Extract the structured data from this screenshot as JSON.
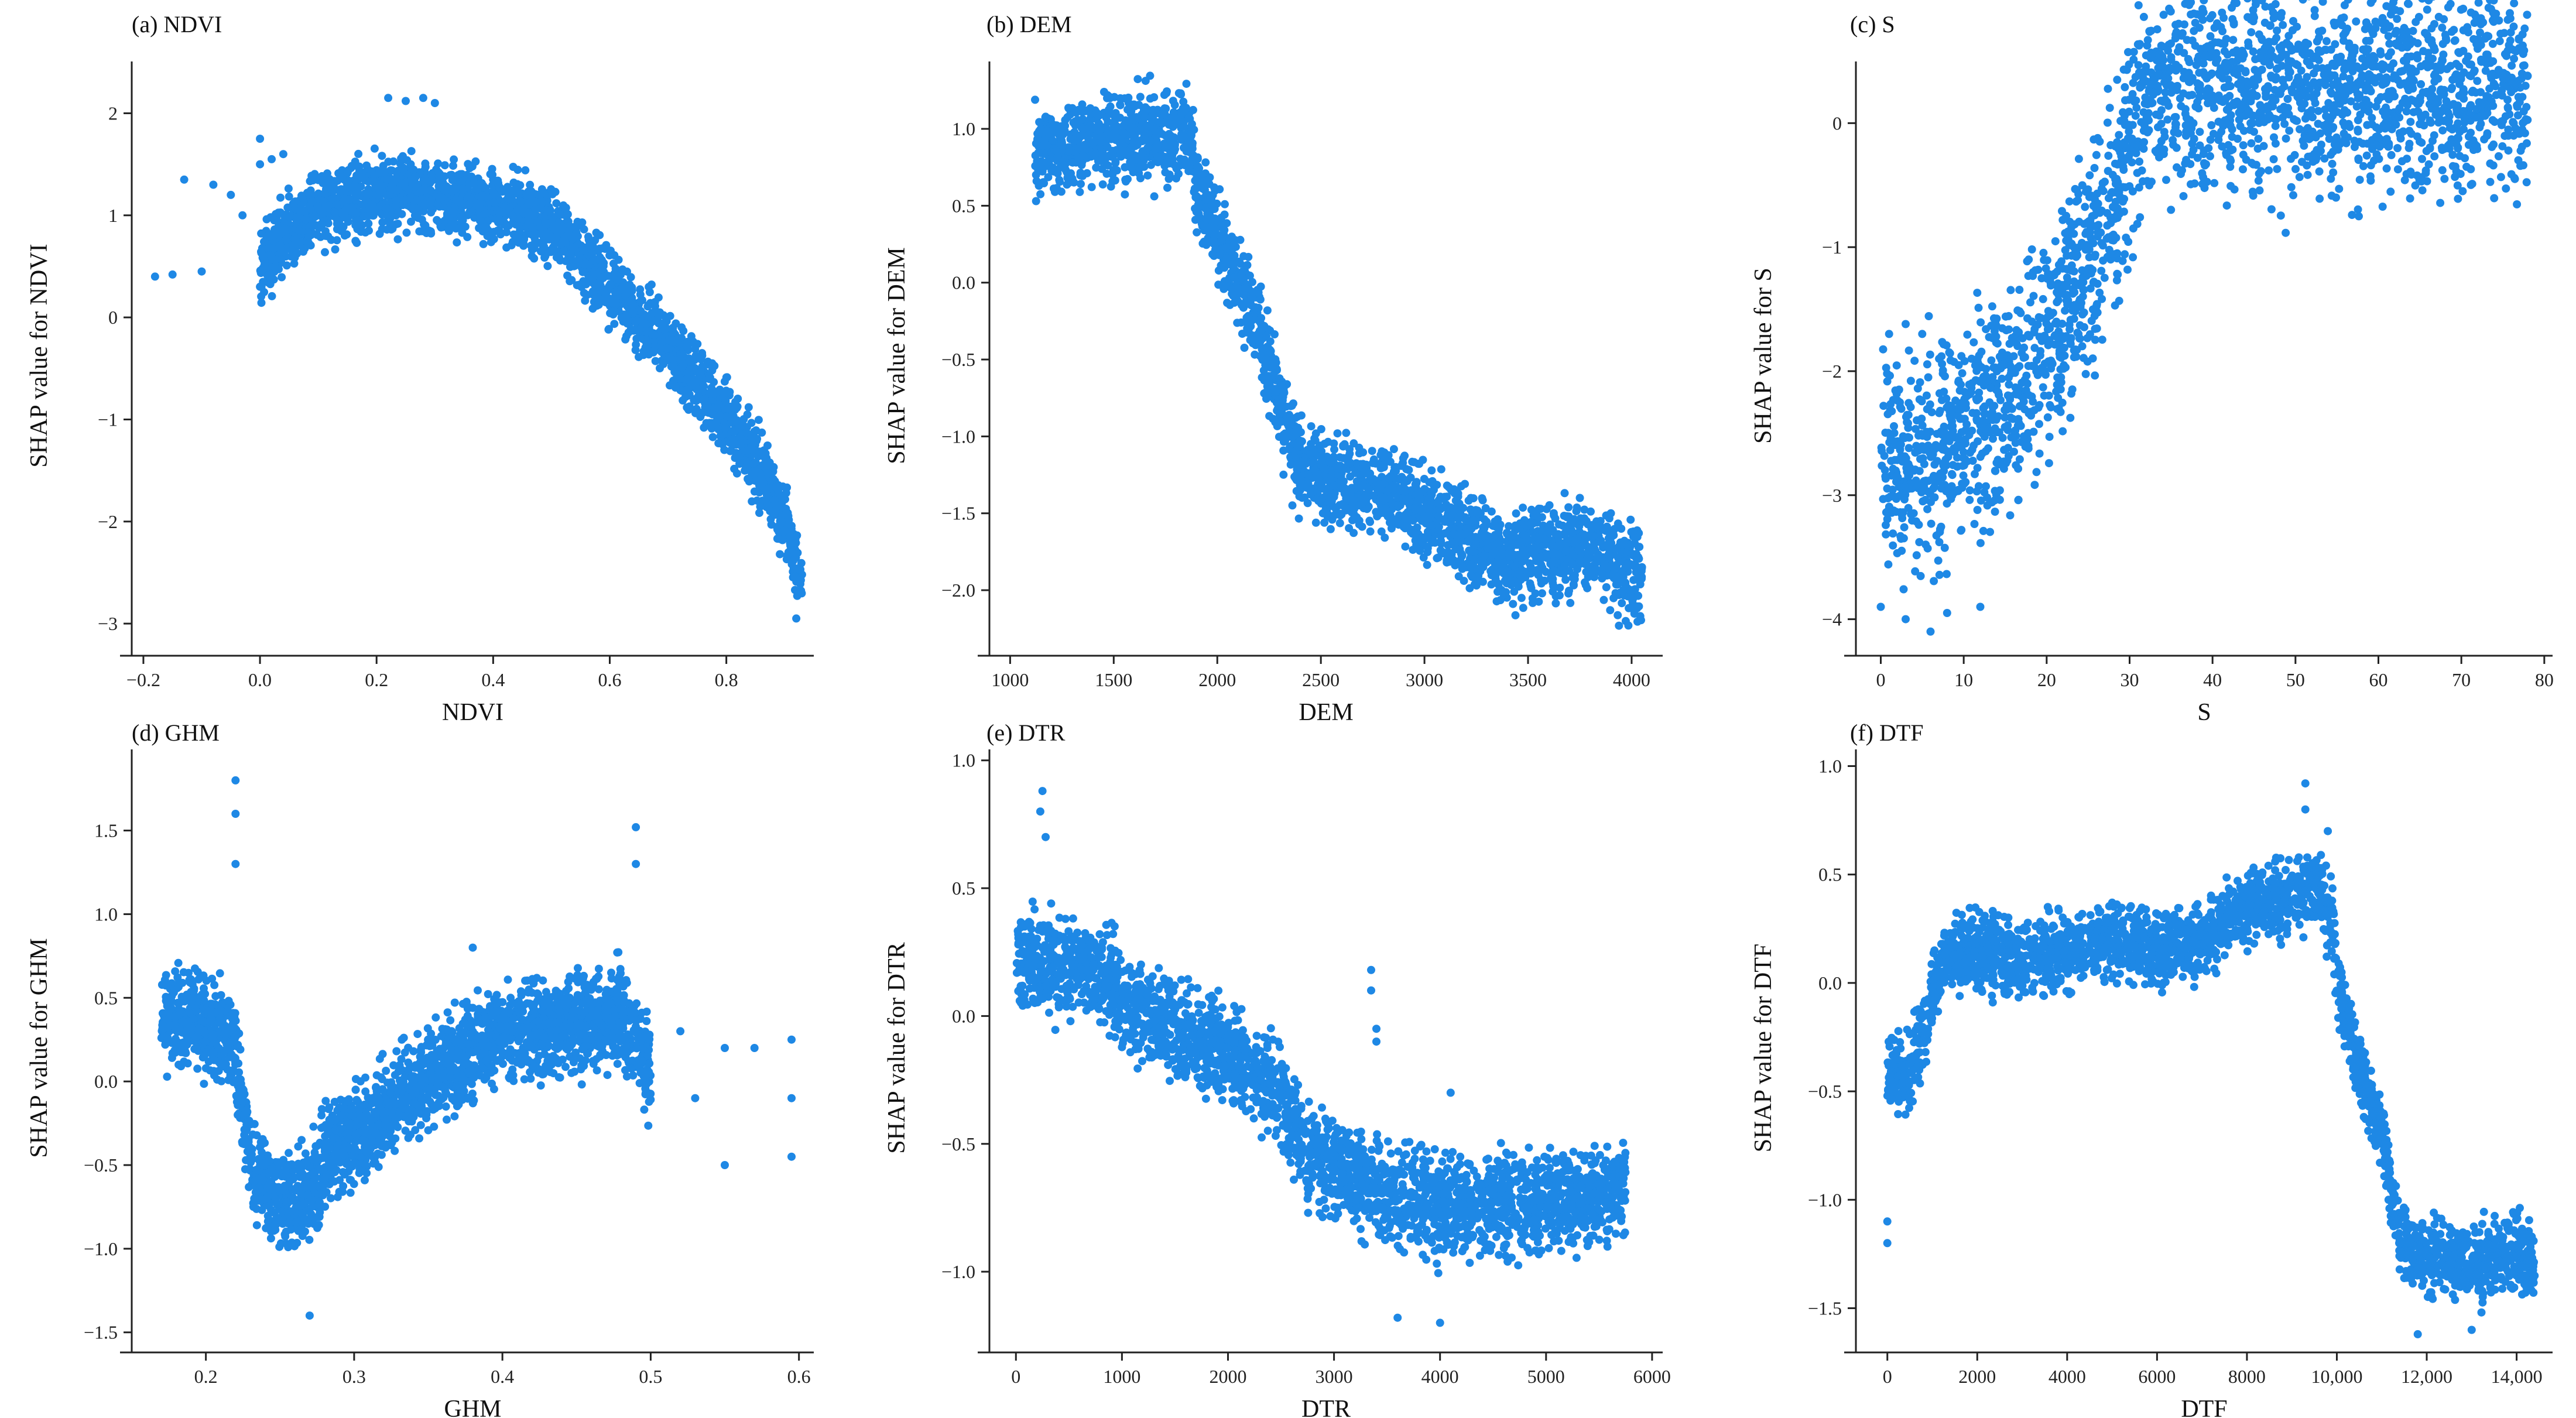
{
  "colors": {
    "points": "#1e88e5",
    "axis": "#222222"
  },
  "chart_data": [
    {
      "id": "ndvi",
      "type": "scatter",
      "title": "(a) NDVI",
      "xlabel": "NDVI",
      "ylabel": "SHAP value for NDVI",
      "xlim": [
        -0.22,
        0.95
      ],
      "ylim": [
        -3.2,
        2.45
      ],
      "xticks": [
        -0.2,
        0.0,
        0.2,
        0.4,
        0.6,
        0.8
      ],
      "xtick_labels": [
        "−0.2",
        "0.0",
        "0.2",
        "0.4",
        "0.6",
        "0.8"
      ],
      "yticks": [
        -3,
        -2,
        -1,
        0,
        1,
        2
      ],
      "ytick_labels": [
        "−3",
        "−2",
        "−1",
        "0",
        "1",
        "2"
      ],
      "trend": [
        [
          0.0,
          0.5
        ],
        [
          0.05,
          0.85
        ],
        [
          0.1,
          1.05
        ],
        [
          0.2,
          1.2
        ],
        [
          0.3,
          1.2
        ],
        [
          0.4,
          1.1
        ],
        [
          0.5,
          0.9
        ],
        [
          0.6,
          0.3
        ],
        [
          0.7,
          -0.3
        ],
        [
          0.8,
          -1.0
        ],
        [
          0.85,
          -1.4
        ],
        [
          0.9,
          -2.0
        ],
        [
          0.93,
          -2.6
        ]
      ],
      "spread": 0.35,
      "extra_points": [
        [
          -0.18,
          0.4
        ],
        [
          -0.15,
          0.42
        ],
        [
          -0.13,
          1.35
        ],
        [
          -0.1,
          0.45
        ],
        [
          -0.08,
          1.3
        ],
        [
          -0.05,
          1.2
        ],
        [
          -0.03,
          1.0
        ],
        [
          0.0,
          1.75
        ],
        [
          0.0,
          1.5
        ],
        [
          0.0,
          0.3
        ],
        [
          0.02,
          1.55
        ],
        [
          0.04,
          1.6
        ],
        [
          0.22,
          2.15
        ],
        [
          0.25,
          2.12
        ],
        [
          0.28,
          2.15
        ],
        [
          0.3,
          2.1
        ],
        [
          0.92,
          -2.95
        ]
      ]
    },
    {
      "id": "dem",
      "type": "scatter",
      "title": "(b) DEM",
      "xlabel": "DEM",
      "ylabel": "SHAP value for DEM",
      "xlim": [
        900,
        4150
      ],
      "ylim": [
        -2.35,
        1.4
      ],
      "xticks": [
        1000,
        1500,
        2000,
        2500,
        3000,
        3500,
        4000
      ],
      "xtick_labels": [
        "1000",
        "1500",
        "2000",
        "2500",
        "3000",
        "3500",
        "4000"
      ],
      "yticks": [
        -2.0,
        -1.5,
        -1.0,
        -0.5,
        0.0,
        0.5,
        1.0
      ],
      "ytick_labels": [
        "−2.0",
        "−1.5",
        "−1.0",
        "−0.5",
        "0.0",
        "0.5",
        "1.0"
      ],
      "trend": [
        [
          1120,
          0.85
        ],
        [
          1300,
          0.9
        ],
        [
          1500,
          0.95
        ],
        [
          1700,
          0.95
        ],
        [
          1880,
          0.95
        ],
        [
          1900,
          0.6
        ],
        [
          2000,
          0.3
        ],
        [
          2100,
          0.0
        ],
        [
          2200,
          -0.3
        ],
        [
          2300,
          -0.8
        ],
        [
          2400,
          -1.2
        ],
        [
          2600,
          -1.3
        ],
        [
          2800,
          -1.35
        ],
        [
          3000,
          -1.5
        ],
        [
          3200,
          -1.65
        ],
        [
          3400,
          -1.8
        ],
        [
          3600,
          -1.75
        ],
        [
          3800,
          -1.7
        ],
        [
          4050,
          -1.95
        ]
      ],
      "spread": 0.3,
      "extra_points": [
        [
          3750,
          -1.4
        ],
        [
          3850,
          -1.55
        ],
        [
          3900,
          -1.5
        ],
        [
          3950,
          -1.6
        ],
        [
          4000,
          -2.0
        ],
        [
          4050,
          -1.85
        ]
      ]
    },
    {
      "id": "s",
      "type": "scatter",
      "title": "(c) S",
      "xlabel": "S",
      "ylabel": "SHAP value for S",
      "xlim": [
        -3,
        81
      ],
      "ylim": [
        -4.2,
        0.45
      ],
      "xticks": [
        0,
        10,
        20,
        30,
        40,
        50,
        60,
        70,
        80
      ],
      "xtick_labels": [
        "0",
        "10",
        "20",
        "30",
        "40",
        "50",
        "60",
        "70",
        "80"
      ],
      "yticks": [
        -4,
        -3,
        -2,
        -1,
        0
      ],
      "ytick_labels": [
        "−4",
        "−3",
        "−2",
        "−1",
        "0"
      ],
      "trend": [
        [
          0,
          -2.7
        ],
        [
          5,
          -2.7
        ],
        [
          10,
          -2.5
        ],
        [
          15,
          -2.2
        ],
        [
          20,
          -1.8
        ],
        [
          25,
          -1.2
        ],
        [
          28,
          -0.7
        ],
        [
          30,
          -0.2
        ],
        [
          32,
          0.25
        ],
        [
          40,
          0.3
        ],
        [
          50,
          0.3
        ],
        [
          60,
          0.3
        ],
        [
          70,
          0.3
        ],
        [
          78,
          0.3
        ]
      ],
      "spread": 0.9,
      "extra_points": [
        [
          0,
          -3.9
        ],
        [
          3,
          -4.0
        ],
        [
          6,
          -4.1
        ],
        [
          8,
          -3.95
        ],
        [
          12,
          -3.9
        ],
        [
          1,
          -1.7
        ],
        [
          3,
          -1.62
        ],
        [
          5,
          -1.7
        ],
        [
          78,
          0.38
        ],
        [
          76,
          0.25
        ]
      ]
    },
    {
      "id": "ghm",
      "type": "scatter",
      "title": "(d) GHM",
      "xlabel": "GHM",
      "ylabel": "SHAP value for GHM",
      "xlim": [
        0.15,
        0.61
      ],
      "ylim": [
        -1.55,
        1.95
      ],
      "xticks": [
        0.2,
        0.3,
        0.4,
        0.5,
        0.6
      ],
      "xtick_labels": [
        "0.2",
        "0.3",
        "0.4",
        "0.5",
        "0.6"
      ],
      "yticks": [
        -1.5,
        -1.0,
        -0.5,
        0.0,
        0.5,
        1.0,
        1.5
      ],
      "ytick_labels": [
        "−1.5",
        "−1.0",
        "−0.5",
        "0.0",
        "0.5",
        "1.0",
        "1.5"
      ],
      "trend": [
        [
          0.17,
          0.35
        ],
        [
          0.19,
          0.4
        ],
        [
          0.21,
          0.3
        ],
        [
          0.22,
          0.2
        ],
        [
          0.23,
          -0.5
        ],
        [
          0.25,
          -0.75
        ],
        [
          0.27,
          -0.65
        ],
        [
          0.28,
          -0.45
        ],
        [
          0.3,
          -0.35
        ],
        [
          0.33,
          -0.1
        ],
        [
          0.36,
          0.1
        ],
        [
          0.38,
          0.2
        ],
        [
          0.4,
          0.3
        ],
        [
          0.45,
          0.35
        ],
        [
          0.48,
          0.4
        ],
        [
          0.5,
          0.1
        ]
      ],
      "spread": 0.3,
      "extra_points": [
        [
          0.22,
          1.8
        ],
        [
          0.22,
          1.6
        ],
        [
          0.22,
          1.3
        ],
        [
          0.27,
          -1.4
        ],
        [
          0.49,
          1.52
        ],
        [
          0.49,
          1.3
        ],
        [
          0.38,
          0.8
        ],
        [
          0.52,
          0.3
        ],
        [
          0.53,
          -0.1
        ],
        [
          0.55,
          0.2
        ],
        [
          0.55,
          -0.5
        ],
        [
          0.57,
          0.2
        ],
        [
          0.595,
          0.25
        ],
        [
          0.595,
          -0.1
        ],
        [
          0.595,
          -0.45
        ]
      ]
    },
    {
      "id": "dtr",
      "type": "scatter",
      "title": "(e) DTR",
      "xlabel": "DTR",
      "ylabel": "SHAP value for DTR",
      "xlim": [
        -250,
        6100
      ],
      "ylim": [
        -1.27,
        1.02
      ],
      "xticks": [
        0,
        1000,
        2000,
        3000,
        4000,
        5000,
        6000
      ],
      "xtick_labels": [
        "0",
        "1000",
        "2000",
        "3000",
        "4000",
        "5000",
        "6000"
      ],
      "yticks": [
        -1.0,
        -0.5,
        0.0,
        0.5,
        1.0
      ],
      "ytick_labels": [
        "−1.0",
        "−0.5",
        "0.0",
        "0.5",
        "1.0"
      ],
      "trend": [
        [
          0,
          0.2
        ],
        [
          500,
          0.2
        ],
        [
          900,
          0.15
        ],
        [
          1000,
          0.05
        ],
        [
          1500,
          -0.05
        ],
        [
          2000,
          -0.15
        ],
        [
          2500,
          -0.3
        ],
        [
          2700,
          -0.5
        ],
        [
          3000,
          -0.6
        ],
        [
          3500,
          -0.7
        ],
        [
          4000,
          -0.75
        ],
        [
          4500,
          -0.75
        ],
        [
          5000,
          -0.72
        ],
        [
          5500,
          -0.7
        ],
        [
          5750,
          -0.65
        ]
      ],
      "spread": 0.2,
      "extra_points": [
        [
          250,
          0.88
        ],
        [
          230,
          0.8
        ],
        [
          280,
          0.7
        ],
        [
          3350,
          0.18
        ],
        [
          3350,
          0.1
        ],
        [
          3400,
          -0.05
        ],
        [
          3400,
          -0.1
        ],
        [
          3600,
          -1.18
        ],
        [
          4100,
          -0.3
        ],
        [
          4000,
          -1.2
        ]
      ]
    },
    {
      "id": "dtf",
      "type": "scatter",
      "title": "(f) DTF",
      "xlabel": "DTF",
      "ylabel": "SHAP value for DTF",
      "xlim": [
        -700,
        14800
      ],
      "ylim": [
        -1.65,
        1.05
      ],
      "xticks": [
        0,
        2000,
        4000,
        6000,
        8000,
        10000,
        12000,
        14000
      ],
      "xtick_labels": [
        "0",
        "2000",
        "4000",
        "6000",
        "8000",
        "10,000",
        "12,000",
        "14,000"
      ],
      "yticks": [
        -1.5,
        -1.0,
        -0.5,
        0.0,
        0.5,
        1.0
      ],
      "ytick_labels": [
        "−1.5",
        "−1.0",
        "−0.5",
        "0.0",
        "0.5",
        "1.0"
      ],
      "trend": [
        [
          0,
          -0.45
        ],
        [
          500,
          -0.4
        ],
        [
          1000,
          -0.1
        ],
        [
          1200,
          0.1
        ],
        [
          2000,
          0.15
        ],
        [
          3000,
          0.1
        ],
        [
          4000,
          0.15
        ],
        [
          5000,
          0.2
        ],
        [
          6000,
          0.15
        ],
        [
          7000,
          0.2
        ],
        [
          8000,
          0.35
        ],
        [
          9000,
          0.4
        ],
        [
          9500,
          0.45
        ],
        [
          9900,
          0.3
        ],
        [
          10000,
          0.0
        ],
        [
          10500,
          -0.4
        ],
        [
          11000,
          -0.7
        ],
        [
          11400,
          -1.2
        ],
        [
          12000,
          -1.25
        ],
        [
          13000,
          -1.3
        ],
        [
          14000,
          -1.25
        ],
        [
          14400,
          -1.3
        ]
      ],
      "spread": 0.18,
      "extra_points": [
        [
          9300,
          0.92
        ],
        [
          9300,
          0.8
        ],
        [
          0,
          -1.2
        ],
        [
          0,
          -1.1
        ],
        [
          9800,
          0.7
        ],
        [
          11800,
          -1.62
        ],
        [
          13000,
          -1.6
        ],
        [
          14400,
          -1.35
        ]
      ]
    }
  ]
}
